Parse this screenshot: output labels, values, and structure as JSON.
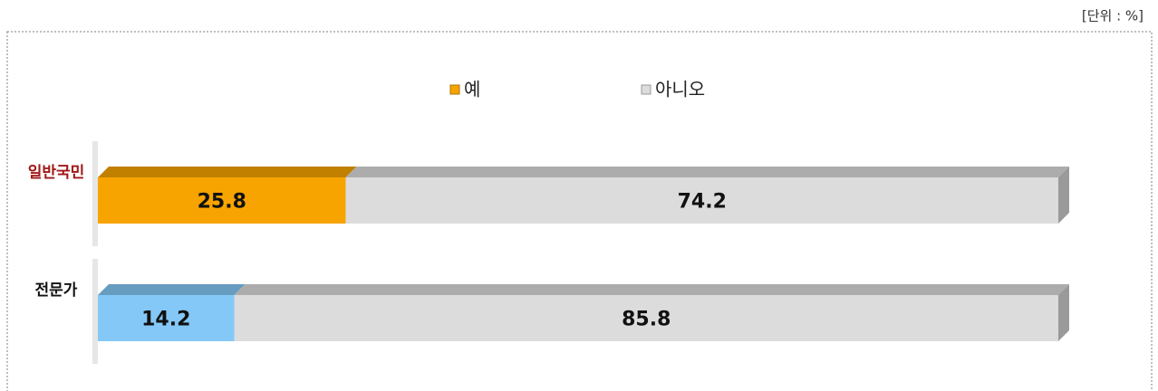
{
  "chart_data": {
    "type": "bar",
    "orientation": "horizontal",
    "stacked": true,
    "unit_label": "[단위 : %]",
    "categories": [
      "일반국민",
      "전문가"
    ],
    "category_colors": [
      "#a01818",
      "#111111"
    ],
    "series": [
      {
        "name": "예",
        "color": "#f7a400",
        "point_colors": [
          "#f7a400",
          "#84c8f8"
        ],
        "values": [
          25.8,
          14.2
        ]
      },
      {
        "name": "아니오",
        "color": "#dcdcdc",
        "point_colors": [
          "#dcdcdc",
          "#dcdcdc"
        ],
        "values": [
          74.2,
          85.8
        ]
      }
    ],
    "xlim": [
      0,
      100
    ]
  }
}
